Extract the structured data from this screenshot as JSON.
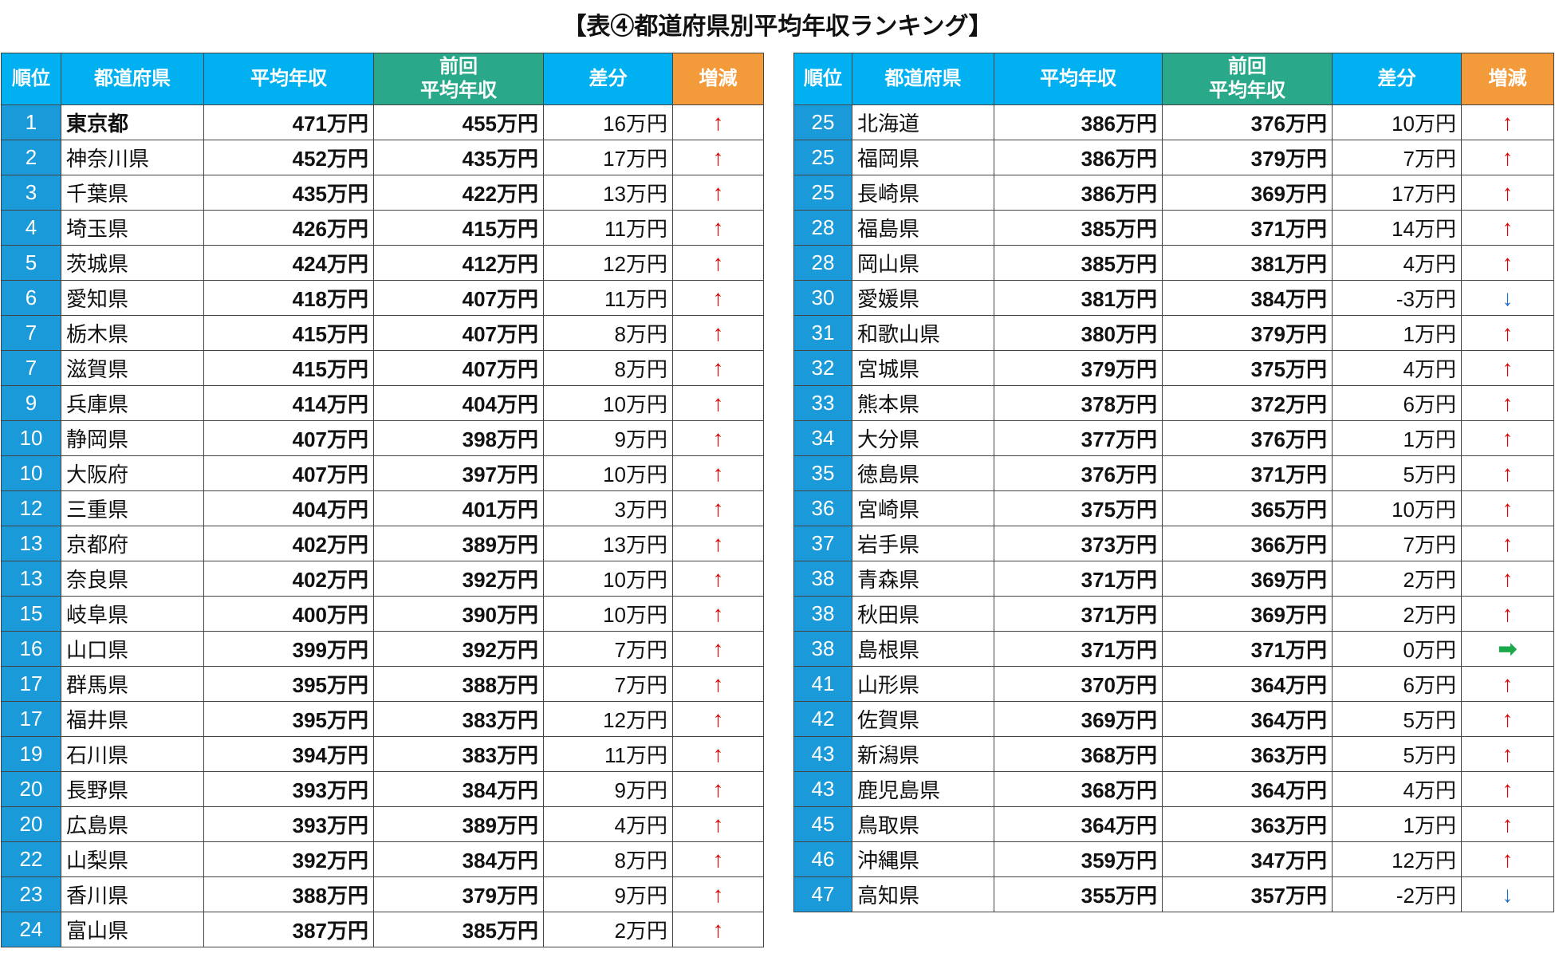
{
  "title": "【表④都道府県別平均年収ランキング】",
  "tables": [
    {
      "headers": [
        "順位",
        "都道府県",
        "平均年収",
        [
          "前回",
          "平均年収"
        ],
        "差分",
        "増減"
      ],
      "rows": [
        [
          "1",
          "東京都",
          "471万円",
          "455万円",
          "16万円",
          "↑"
        ],
        [
          "2",
          "神奈川県",
          "452万円",
          "435万円",
          "17万円",
          "↑"
        ],
        [
          "3",
          "千葉県",
          "435万円",
          "422万円",
          "13万円",
          "↑"
        ],
        [
          "4",
          "埼玉県",
          "426万円",
          "415万円",
          "11万円",
          "↑"
        ],
        [
          "5",
          "茨城県",
          "424万円",
          "412万円",
          "12万円",
          "↑"
        ],
        [
          "6",
          "愛知県",
          "418万円",
          "407万円",
          "11万円",
          "↑"
        ],
        [
          "7",
          "栃木県",
          "415万円",
          "407万円",
          "8万円",
          "↑"
        ],
        [
          "7",
          "滋賀県",
          "415万円",
          "407万円",
          "8万円",
          "↑"
        ],
        [
          "9",
          "兵庫県",
          "414万円",
          "404万円",
          "10万円",
          "↑"
        ],
        [
          "10",
          "静岡県",
          "407万円",
          "398万円",
          "9万円",
          "↑"
        ],
        [
          "10",
          "大阪府",
          "407万円",
          "397万円",
          "10万円",
          "↑"
        ],
        [
          "12",
          "三重県",
          "404万円",
          "401万円",
          "3万円",
          "↑"
        ],
        [
          "13",
          "京都府",
          "402万円",
          "389万円",
          "13万円",
          "↑"
        ],
        [
          "13",
          "奈良県",
          "402万円",
          "392万円",
          "10万円",
          "↑"
        ],
        [
          "15",
          "岐阜県",
          "400万円",
          "390万円",
          "10万円",
          "↑"
        ],
        [
          "16",
          "山口県",
          "399万円",
          "392万円",
          "7万円",
          "↑"
        ],
        [
          "17",
          "群馬県",
          "395万円",
          "388万円",
          "7万円",
          "↑"
        ],
        [
          "17",
          "福井県",
          "395万円",
          "383万円",
          "12万円",
          "↑"
        ],
        [
          "19",
          "石川県",
          "394万円",
          "383万円",
          "11万円",
          "↑"
        ],
        [
          "20",
          "長野県",
          "393万円",
          "384万円",
          "9万円",
          "↑"
        ],
        [
          "20",
          "広島県",
          "393万円",
          "389万円",
          "4万円",
          "↑"
        ],
        [
          "22",
          "山梨県",
          "392万円",
          "384万円",
          "8万円",
          "↑"
        ],
        [
          "23",
          "香川県",
          "388万円",
          "379万円",
          "9万円",
          "↑"
        ],
        [
          "24",
          "富山県",
          "387万円",
          "385万円",
          "2万円",
          "↑"
        ]
      ]
    },
    {
      "headers": [
        "順位",
        "都道府県",
        "平均年収",
        [
          "前回",
          "平均年収"
        ],
        "差分",
        "増減"
      ],
      "rows": [
        [
          "25",
          "北海道",
          "386万円",
          "376万円",
          "10万円",
          "↑"
        ],
        [
          "25",
          "福岡県",
          "386万円",
          "379万円",
          "7万円",
          "↑"
        ],
        [
          "25",
          "長崎県",
          "386万円",
          "369万円",
          "17万円",
          "↑"
        ],
        [
          "28",
          "福島県",
          "385万円",
          "371万円",
          "14万円",
          "↑"
        ],
        [
          "28",
          "岡山県",
          "385万円",
          "381万円",
          "4万円",
          "↑"
        ],
        [
          "30",
          "愛媛県",
          "381万円",
          "384万円",
          "-3万円",
          "↓"
        ],
        [
          "31",
          "和歌山県",
          "380万円",
          "379万円",
          "1万円",
          "↑"
        ],
        [
          "32",
          "宮城県",
          "379万円",
          "375万円",
          "4万円",
          "↑"
        ],
        [
          "33",
          "熊本県",
          "378万円",
          "372万円",
          "6万円",
          "↑"
        ],
        [
          "34",
          "大分県",
          "377万円",
          "376万円",
          "1万円",
          "↑"
        ],
        [
          "35",
          "徳島県",
          "376万円",
          "371万円",
          "5万円",
          "↑"
        ],
        [
          "36",
          "宮崎県",
          "375万円",
          "365万円",
          "10万円",
          "↑"
        ],
        [
          "37",
          "岩手県",
          "373万円",
          "366万円",
          "7万円",
          "↑"
        ],
        [
          "38",
          "青森県",
          "371万円",
          "369万円",
          "2万円",
          "↑"
        ],
        [
          "38",
          "秋田県",
          "371万円",
          "369万円",
          "2万円",
          "↑"
        ],
        [
          "38",
          "島根県",
          "371万円",
          "371万円",
          "0万円",
          "➡"
        ],
        [
          "41",
          "山形県",
          "370万円",
          "364万円",
          "6万円",
          "↑"
        ],
        [
          "42",
          "佐賀県",
          "369万円",
          "364万円",
          "5万円",
          "↑"
        ],
        [
          "43",
          "新潟県",
          "368万円",
          "363万円",
          "5万円",
          "↑"
        ],
        [
          "43",
          "鹿児島県",
          "368万円",
          "364万円",
          "4万円",
          "↑"
        ],
        [
          "45",
          "鳥取県",
          "364万円",
          "363万円",
          "1万円",
          "↑"
        ],
        [
          "46",
          "沖縄県",
          "359万円",
          "347万円",
          "12万円",
          "↑"
        ],
        [
          "47",
          "高知県",
          "355万円",
          "357万円",
          "-2万円",
          "↓"
        ]
      ]
    }
  ]
}
